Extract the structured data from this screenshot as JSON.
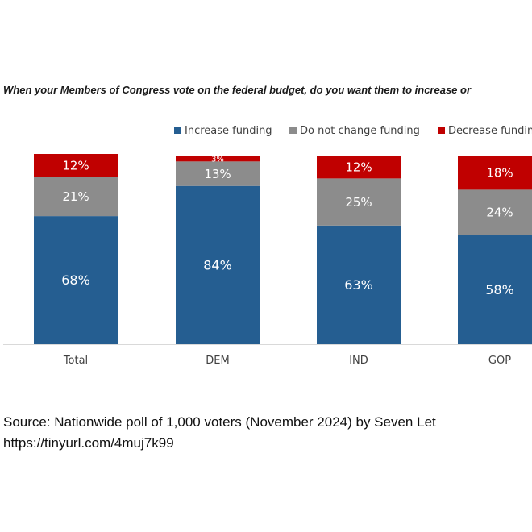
{
  "chart_data": {
    "type": "bar",
    "stacked": true,
    "title": "When your Members of Congress vote on the federal budget, do you want them to increase or",
    "categories": [
      "Total",
      "DEM",
      "IND",
      "GOP"
    ],
    "series": [
      {
        "name": "Increase funding",
        "color": "#255e91",
        "values": [
          68,
          84,
          63,
          58
        ],
        "labels": [
          "68%",
          "84%",
          "63%",
          "58%"
        ]
      },
      {
        "name": "Do not change funding",
        "color": "#8c8c8c",
        "values": [
          21,
          13,
          25,
          24
        ],
        "labels": [
          "21%",
          "13%",
          "25%",
          "24%"
        ]
      },
      {
        "name": "Decrease fundin",
        "color": "#c00000",
        "values": [
          12,
          3,
          12,
          18
        ],
        "labels": [
          "12%",
          "3%",
          "12%",
          "18%"
        ]
      }
    ],
    "ylim": [
      0,
      100
    ],
    "legend_position": "top-right",
    "grid": false
  },
  "source": {
    "text": "Source: Nationwide poll of 1,000 voters (November 2024) by Seven Let",
    "url": "https://tinyurl.com/4muj7k99"
  }
}
